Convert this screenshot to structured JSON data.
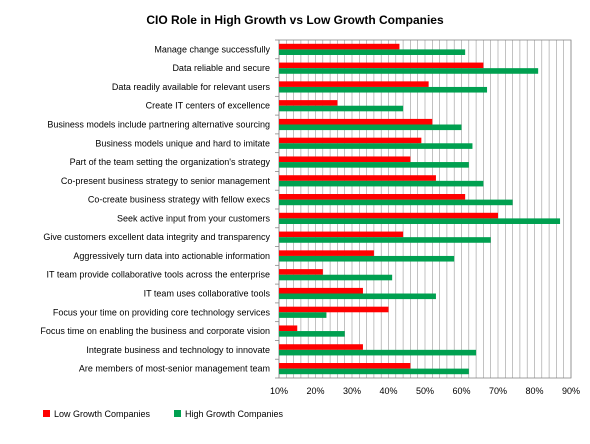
{
  "chart_data": {
    "type": "bar",
    "orientation": "horizontal",
    "title": "CIO Role in High Growth vs Low Growth Companies",
    "categories": [
      "Manage change successfully",
      "Data reliable and secure",
      "Data readily available for relevant users",
      "Create IT centers of excellence",
      "Business models include partnering alternative sourcing",
      "Business models unique and hard to imitate",
      "Part of the team setting the organization's strategy",
      "Co-present business strategy to senior management",
      "Co-create business strategy with fellow execs",
      "Seek active input from your customers",
      "Give customers excellent data integrity and transparency",
      "Aggressively turn data into actionable information",
      "IT team provide collaborative tools across the enterprise",
      "IT team uses collaborative tools",
      "Focus your time on providing core technology services",
      "Focus  time on enabling the business and corporate vision",
      "Integrate business and technology to innovate",
      "Are members of most-senior management team"
    ],
    "series": [
      {
        "name": "Low Growth Companies",
        "color": "#ff0000",
        "values": [
          43,
          66,
          51,
          26,
          52,
          49,
          46,
          53,
          61,
          70,
          44,
          36,
          22,
          33,
          40,
          15,
          33,
          46
        ]
      },
      {
        "name": "High Growth Companies",
        "color": "#00a050",
        "values": [
          61,
          81,
          67,
          44,
          60,
          63,
          62,
          66,
          74,
          87,
          68,
          58,
          41,
          53,
          23,
          28,
          64,
          62
        ]
      }
    ],
    "x_ticks": [
      "10%",
      "20%",
      "30%",
      "40%",
      "50%",
      "60%",
      "70%",
      "80%",
      "90%"
    ],
    "xlim": [
      10,
      90
    ],
    "grid": true,
    "legend_position": "bottom-left"
  }
}
